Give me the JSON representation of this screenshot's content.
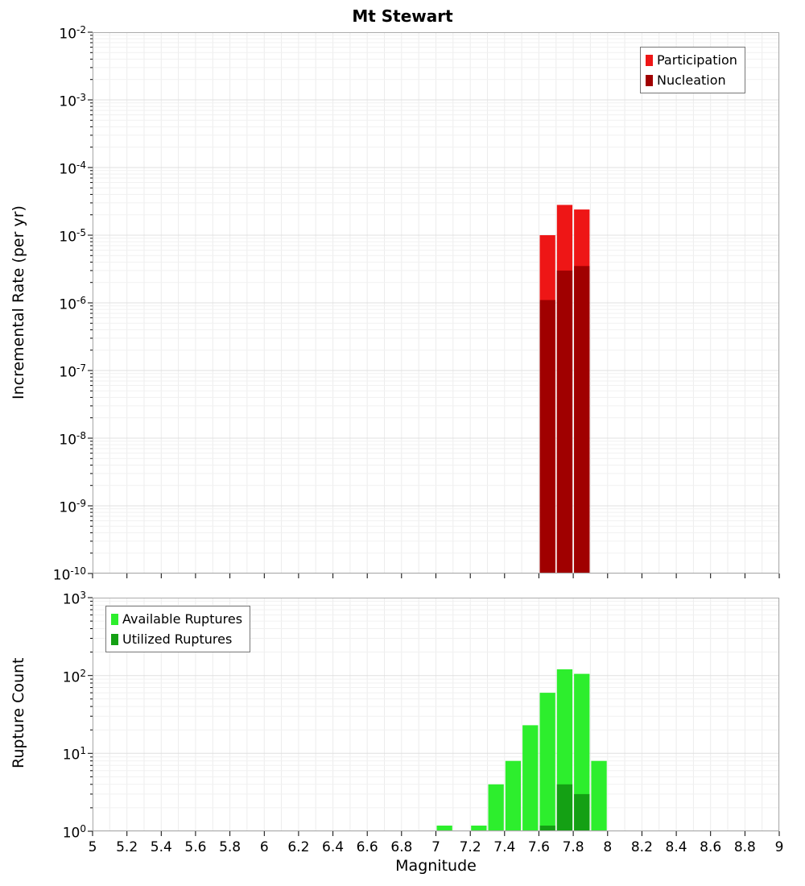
{
  "chart_data": [
    {
      "type": "bar",
      "title": "Mt Stewart",
      "ylabel": "Incremental Rate (per yr)",
      "yscale": "log",
      "ylim": [
        1e-10,
        0.01
      ],
      "xlim": [
        5,
        9
      ],
      "bin_width": 0.1,
      "grid": true,
      "y_tick_exponents": [
        -2,
        -3,
        -4,
        -5,
        -6,
        -7,
        -8,
        -9,
        -10
      ],
      "legend_position": "top-right",
      "series": [
        {
          "name": "Participation",
          "color": "#ee1616",
          "x": [
            7.65,
            7.75,
            7.85
          ],
          "values": [
            1e-05,
            2.8e-05,
            2.4e-05
          ]
        },
        {
          "name": "Nucleation",
          "color": "#a00000",
          "x": [
            7.65,
            7.75,
            7.85
          ],
          "values": [
            1.1e-06,
            3e-06,
            3.5e-06
          ]
        }
      ]
    },
    {
      "type": "bar",
      "ylabel": "Rupture Count",
      "xlabel": "Magnitude",
      "yscale": "log",
      "ylim": [
        1,
        1000
      ],
      "xlim": [
        5,
        9
      ],
      "bin_width": 0.1,
      "grid": true,
      "x_ticks": [
        5,
        5.2,
        5.4,
        5.6,
        5.8,
        6,
        6.2,
        6.4,
        6.6,
        6.8,
        7,
        7.2,
        7.4,
        7.6,
        7.8,
        8,
        8.2,
        8.4,
        8.6,
        8.8,
        9
      ],
      "y_tick_exponents": [
        0,
        1,
        2,
        3
      ],
      "legend_position": "top-left",
      "series": [
        {
          "name": "Available Ruptures",
          "color": "#2dee2d",
          "x": [
            7.05,
            7.25,
            7.35,
            7.45,
            7.55,
            7.65,
            7.75,
            7.85,
            7.95
          ],
          "values": [
            1,
            1,
            4,
            8,
            23,
            60,
            120,
            105,
            8
          ]
        },
        {
          "name": "Utilized Ruptures",
          "color": "#14a014",
          "x": [
            7.65,
            7.75,
            7.85
          ],
          "values": [
            1,
            4,
            3
          ]
        }
      ]
    }
  ]
}
